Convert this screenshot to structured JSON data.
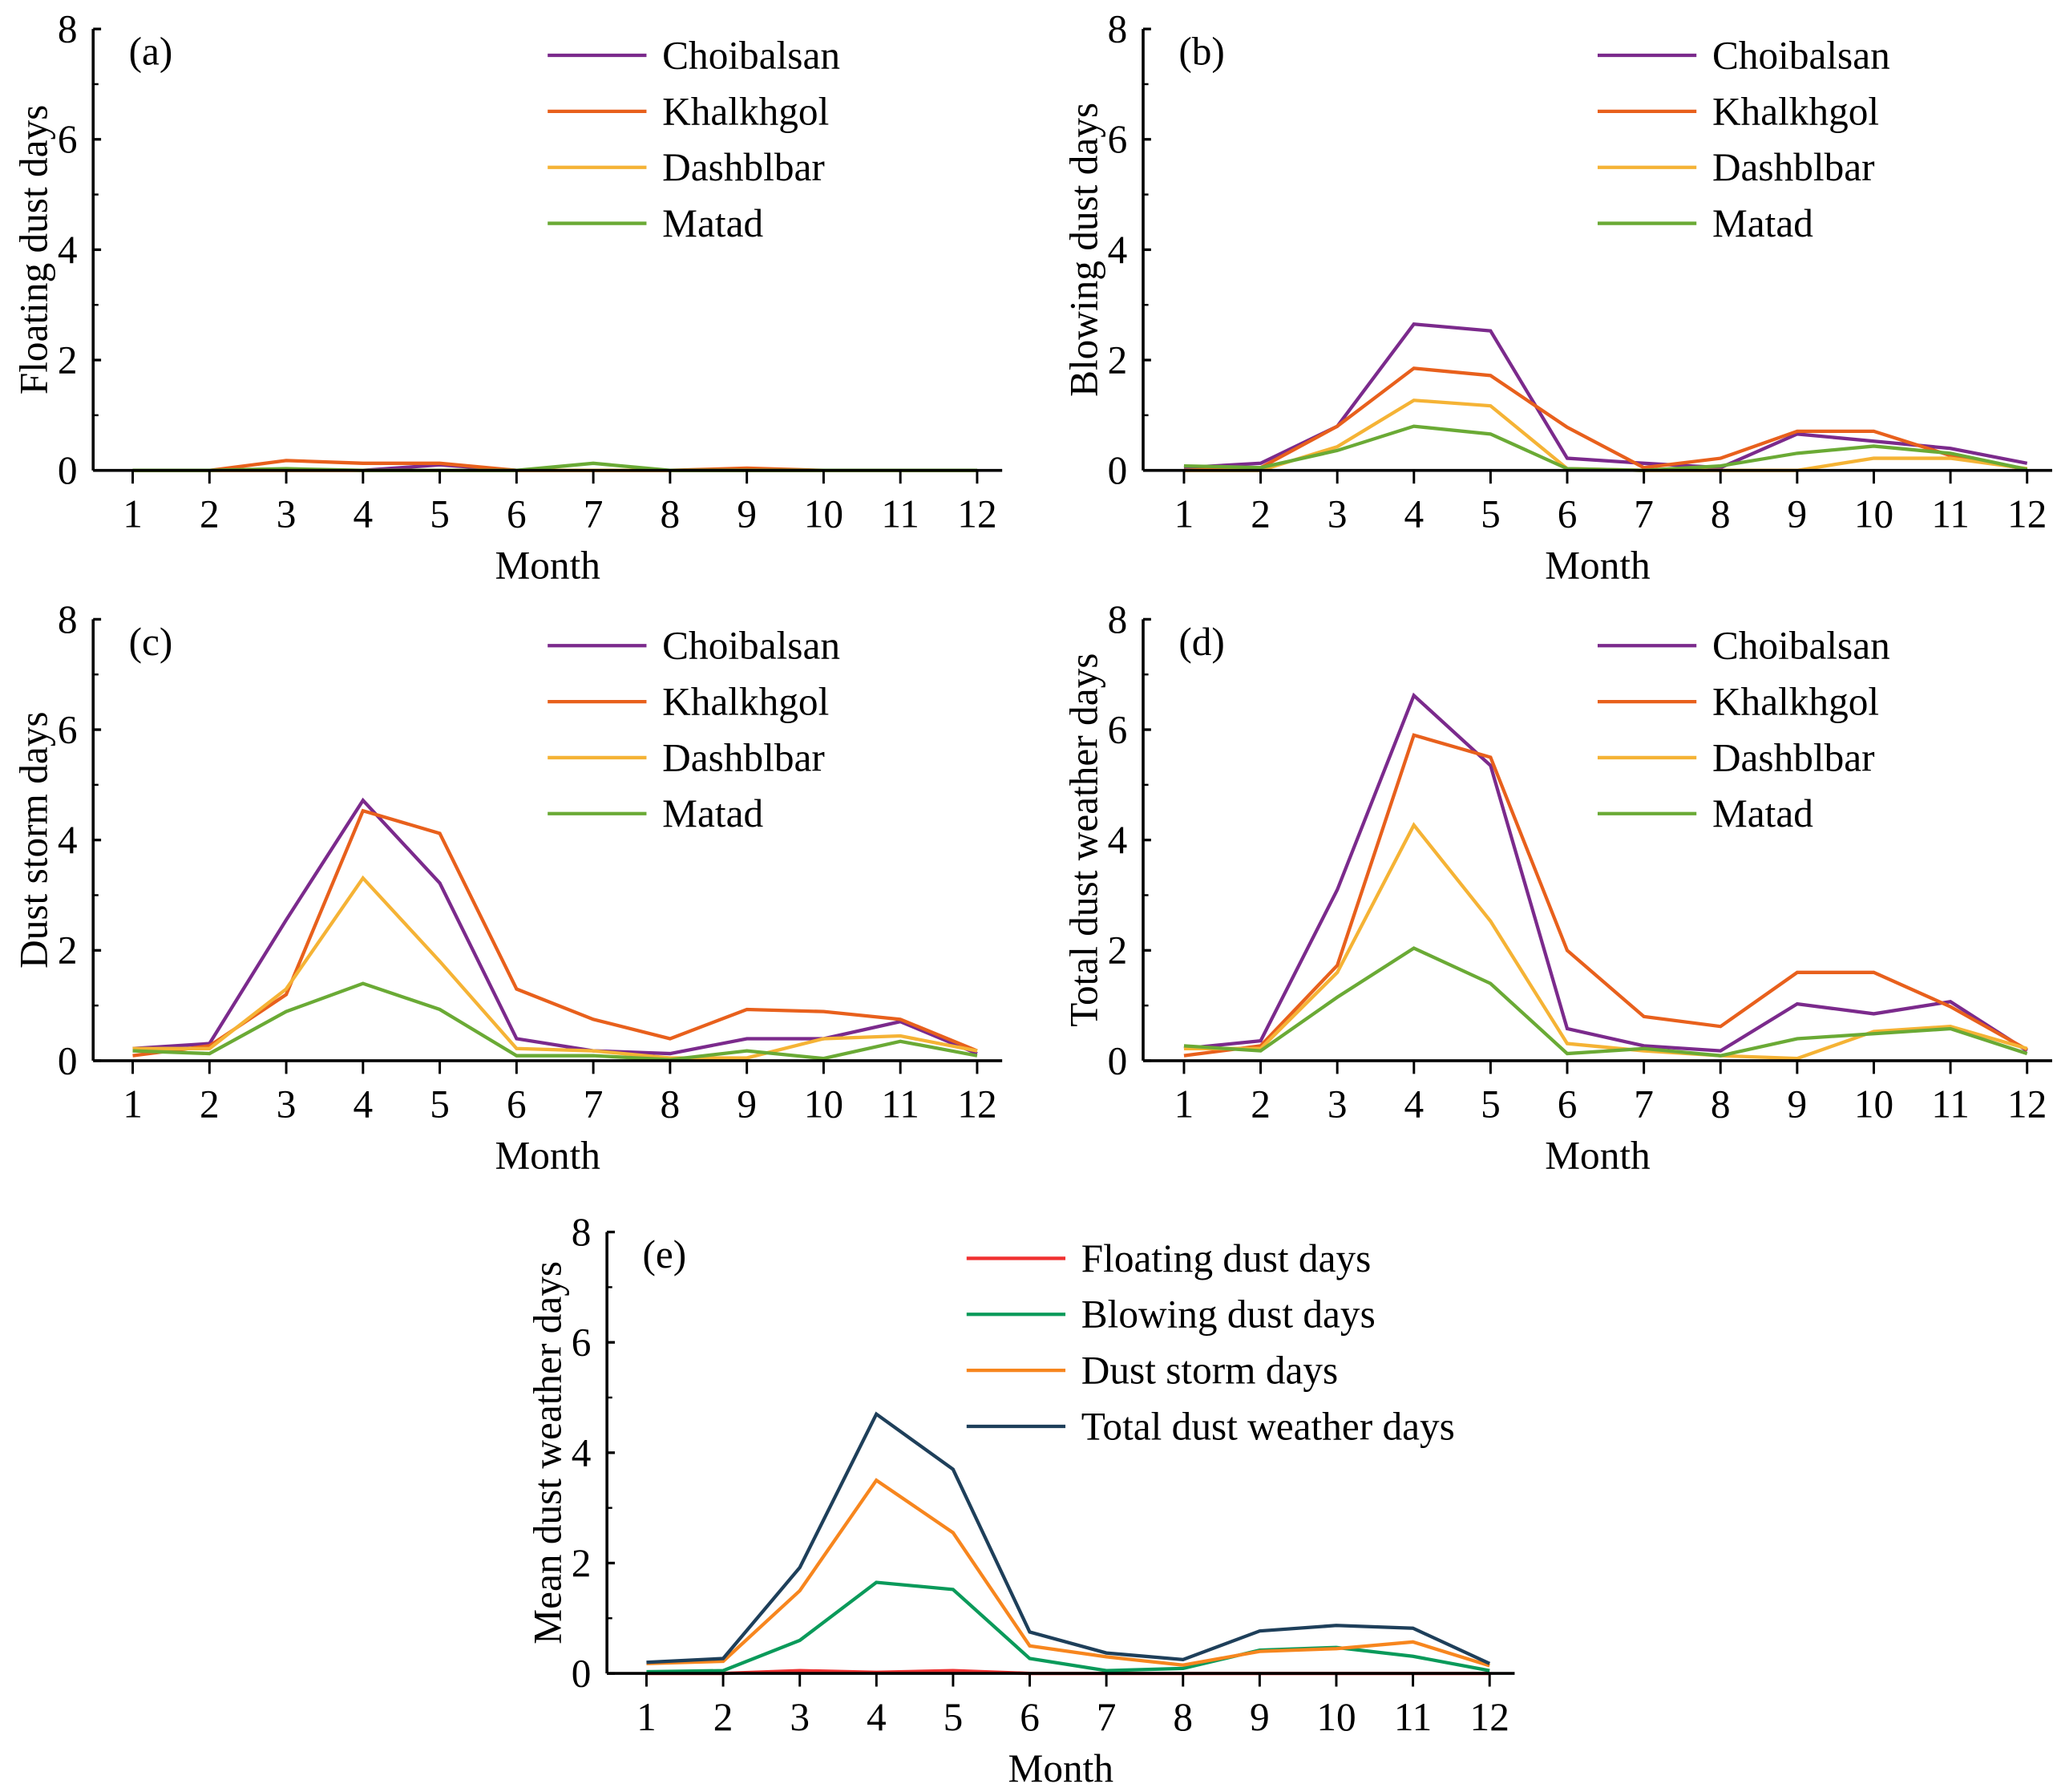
{
  "chart_data": [
    {
      "type": "line",
      "panel_label": "(a)",
      "xlabel": "Month",
      "ylabel": "Floating dust days",
      "x": [
        1,
        2,
        3,
        4,
        5,
        6,
        7,
        8,
        9,
        10,
        11,
        12
      ],
      "ylim": [
        0,
        8
      ],
      "yticks": [
        0,
        2,
        4,
        6,
        8
      ],
      "legend_position": "top-right",
      "series": [
        {
          "name": "Choibalsan",
          "color": "#7B2A8C",
          "values": [
            0,
            0,
            0,
            0,
            0.1,
            0,
            0,
            0,
            0,
            0,
            0,
            0
          ]
        },
        {
          "name": "Khalkhgol",
          "color": "#E8601C",
          "values": [
            0,
            0,
            0.18,
            0.13,
            0.13,
            0,
            0,
            0,
            0.04,
            0,
            0,
            0
          ]
        },
        {
          "name": "Dashblbar",
          "color": "#F5B335",
          "values": [
            0,
            0,
            0,
            0,
            0,
            0,
            0,
            0,
            0,
            0,
            0,
            0
          ]
        },
        {
          "name": "Matad",
          "color": "#6AAA35",
          "values": [
            0,
            0,
            0.03,
            0,
            0,
            0,
            0.13,
            0,
            0,
            0,
            0,
            0
          ]
        }
      ]
    },
    {
      "type": "line",
      "panel_label": "(b)",
      "xlabel": "Month",
      "ylabel": "Blowing dust days",
      "x": [
        1,
        2,
        3,
        4,
        5,
        6,
        7,
        8,
        9,
        10,
        11,
        12
      ],
      "ylim": [
        0,
        8
      ],
      "yticks": [
        0,
        2,
        4,
        6,
        8
      ],
      "legend_position": "top-right",
      "series": [
        {
          "name": "Choibalsan",
          "color": "#7B2A8C",
          "values": [
            0.05,
            0.13,
            0.8,
            2.65,
            2.53,
            0.22,
            0.13,
            0.05,
            0.66,
            0.53,
            0.4,
            0.13
          ]
        },
        {
          "name": "Khalkhgol",
          "color": "#E8601C",
          "values": [
            0,
            0.05,
            0.8,
            1.85,
            1.72,
            0.78,
            0.05,
            0.22,
            0.71,
            0.71,
            0.27,
            0.02
          ]
        },
        {
          "name": "Dashblbar",
          "color": "#F5B335",
          "values": [
            0,
            0,
            0.43,
            1.27,
            1.17,
            0.03,
            0,
            0,
            0,
            0.22,
            0.22,
            0.03
          ]
        },
        {
          "name": "Matad",
          "color": "#6AAA35",
          "values": [
            0.08,
            0.05,
            0.36,
            0.8,
            0.66,
            0.03,
            0,
            0.08,
            0.31,
            0.44,
            0.31,
            0.02
          ]
        }
      ]
    },
    {
      "type": "line",
      "panel_label": "(c)",
      "xlabel": "Month",
      "ylabel": "Dust storm days",
      "x": [
        1,
        2,
        3,
        4,
        5,
        6,
        7,
        8,
        9,
        10,
        11,
        12
      ],
      "ylim": [
        0,
        8
      ],
      "yticks": [
        0,
        2,
        4,
        6,
        8
      ],
      "legend_position": "top-right",
      "series": [
        {
          "name": "Choibalsan",
          "color": "#7B2A8C",
          "values": [
            0.22,
            0.31,
            2.55,
            4.72,
            3.22,
            0.4,
            0.18,
            0.13,
            0.4,
            0.4,
            0.71,
            0.13
          ]
        },
        {
          "name": "Khalkhgol",
          "color": "#E8601C",
          "values": [
            0.09,
            0.27,
            1.2,
            4.53,
            4.12,
            1.3,
            0.75,
            0.4,
            0.93,
            0.89,
            0.75,
            0.18
          ]
        },
        {
          "name": "Dashblbar",
          "color": "#F5B335",
          "values": [
            0.22,
            0.22,
            1.3,
            3.31,
            1.8,
            0.22,
            0.18,
            0.05,
            0.05,
            0.4,
            0.45,
            0.18
          ]
        },
        {
          "name": "Matad",
          "color": "#6AAA35",
          "values": [
            0.18,
            0.13,
            0.89,
            1.4,
            0.93,
            0.09,
            0.09,
            0.02,
            0.18,
            0.04,
            0.35,
            0.09
          ]
        }
      ]
    },
    {
      "type": "line",
      "panel_label": "(d)",
      "xlabel": "Month",
      "ylabel": "Total dust weather days",
      "x": [
        1,
        2,
        3,
        4,
        5,
        6,
        7,
        8,
        9,
        10,
        11,
        12
      ],
      "ylim": [
        0,
        8
      ],
      "yticks": [
        0,
        2,
        4,
        6,
        8
      ],
      "legend_position": "top-right",
      "series": [
        {
          "name": "Choibalsan",
          "color": "#7B2A8C",
          "values": [
            0.22,
            0.36,
            3.1,
            6.62,
            5.35,
            0.58,
            0.27,
            0.18,
            1.03,
            0.85,
            1.07,
            0.18
          ]
        },
        {
          "name": "Khalkhgol",
          "color": "#E8601C",
          "values": [
            0.09,
            0.27,
            1.73,
            5.9,
            5.5,
            2.0,
            0.8,
            0.62,
            1.6,
            1.6,
            0.98,
            0.2
          ]
        },
        {
          "name": "Dashblbar",
          "color": "#F5B335",
          "values": [
            0.22,
            0.22,
            1.6,
            4.27,
            2.53,
            0.31,
            0.18,
            0.09,
            0.04,
            0.53,
            0.62,
            0.22
          ]
        },
        {
          "name": "Matad",
          "color": "#6AAA35",
          "values": [
            0.27,
            0.18,
            1.15,
            2.04,
            1.4,
            0.13,
            0.22,
            0.09,
            0.4,
            0.49,
            0.58,
            0.13
          ]
        }
      ]
    },
    {
      "type": "line",
      "panel_label": "(e)",
      "xlabel": "Month",
      "ylabel": "Mean dust weather days",
      "x": [
        1,
        2,
        3,
        4,
        5,
        6,
        7,
        8,
        9,
        10,
        11,
        12
      ],
      "ylim": [
        0,
        8
      ],
      "yticks": [
        0,
        2,
        4,
        6,
        8
      ],
      "legend_position": "top-right",
      "series": [
        {
          "name": "Floating dust days",
          "color": "#F03030",
          "values": [
            0,
            0,
            0.05,
            0.02,
            0.05,
            0,
            0,
            0,
            0,
            0,
            0,
            0
          ]
        },
        {
          "name": "Blowing dust days",
          "color": "#0A9A5A",
          "values": [
            0.03,
            0.05,
            0.6,
            1.65,
            1.52,
            0.27,
            0.05,
            0.09,
            0.42,
            0.47,
            0.31,
            0.05
          ]
        },
        {
          "name": "Dust storm days",
          "color": "#F7861E",
          "values": [
            0.18,
            0.22,
            1.5,
            3.5,
            2.55,
            0.5,
            0.3,
            0.15,
            0.4,
            0.45,
            0.57,
            0.14
          ]
        },
        {
          "name": "Total dust weather days",
          "color": "#1E3F5A",
          "values": [
            0.2,
            0.27,
            1.92,
            4.7,
            3.7,
            0.75,
            0.37,
            0.25,
            0.77,
            0.87,
            0.82,
            0.18
          ]
        }
      ]
    }
  ]
}
